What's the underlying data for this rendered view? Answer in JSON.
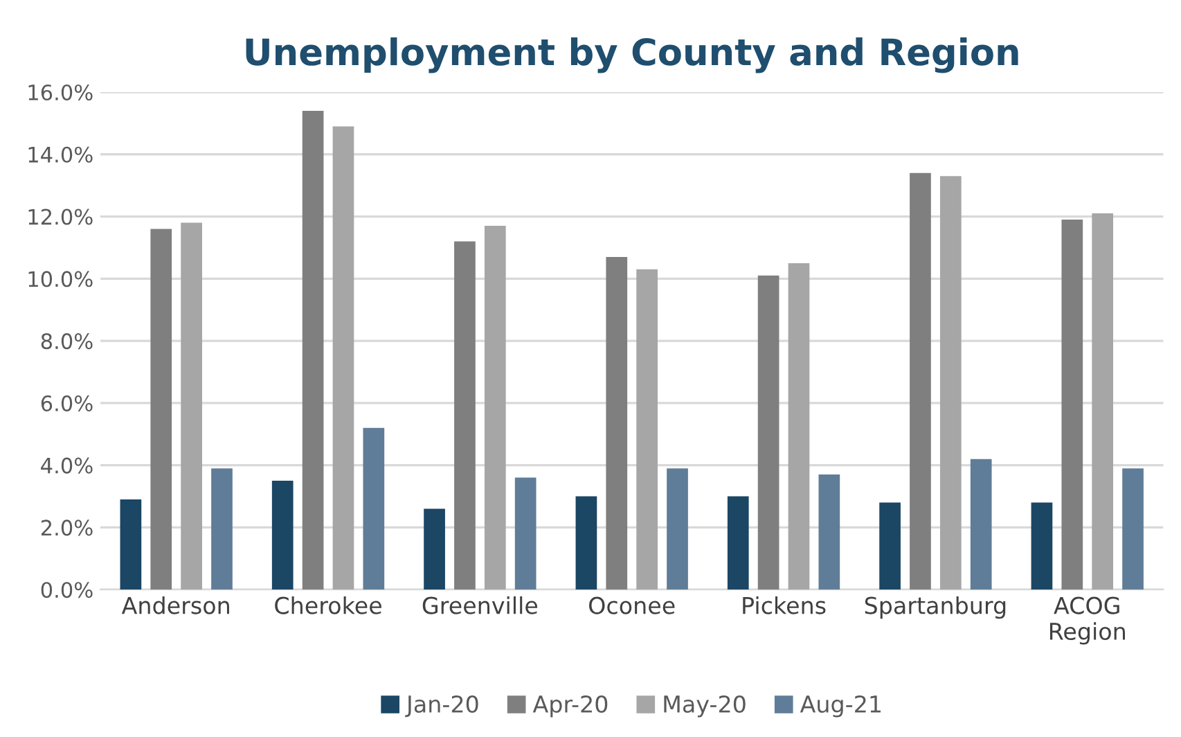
{
  "chart_data": {
    "type": "bar",
    "title": "Unemployment by County and Region",
    "categories": [
      "Anderson",
      "Cherokee",
      "Greenville",
      "Oconee",
      "Pickens",
      "Spartanburg",
      "ACOG\nRegion"
    ],
    "series": [
      {
        "name": "Jan-20",
        "color": "#1b4664",
        "values": [
          2.9,
          3.5,
          2.6,
          3.0,
          3.0,
          2.8,
          2.8
        ]
      },
      {
        "name": "Apr-20",
        "color": "#7f7f7f",
        "values": [
          11.6,
          15.4,
          11.2,
          10.7,
          10.1,
          13.4,
          11.9
        ]
      },
      {
        "name": "May-20",
        "color": "#a6a6a6",
        "values": [
          11.8,
          14.9,
          11.7,
          10.3,
          10.5,
          13.3,
          12.1
        ]
      },
      {
        "name": "Aug-21",
        "color": "#5f7d98",
        "values": [
          3.9,
          5.2,
          3.6,
          3.9,
          3.7,
          4.2,
          3.9
        ]
      }
    ],
    "ylim": [
      0,
      16
    ],
    "yticks": [
      {
        "value": 0,
        "label": "0.0%"
      },
      {
        "value": 2,
        "label": "2.0%"
      },
      {
        "value": 4,
        "label": "4.0%"
      },
      {
        "value": 6,
        "label": "6.0%"
      },
      {
        "value": 8,
        "label": "8.0%"
      },
      {
        "value": 10,
        "label": "10.0%"
      },
      {
        "value": 12,
        "label": "12.0%"
      },
      {
        "value": 14,
        "label": "14.0%"
      },
      {
        "value": 16,
        "label": "16.0%"
      }
    ],
    "grid": "y",
    "legend": "bottom"
  }
}
